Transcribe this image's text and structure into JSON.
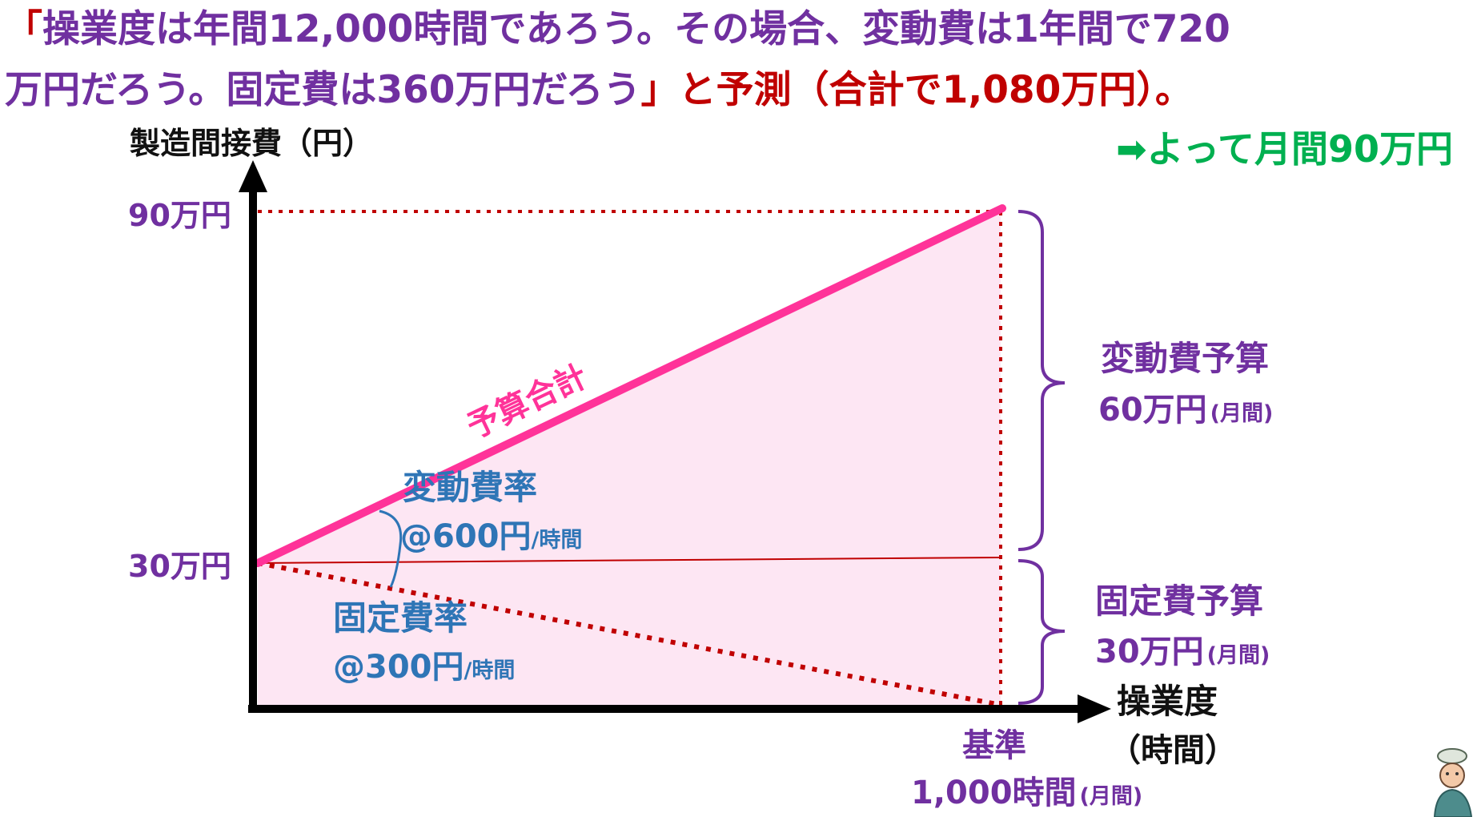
{
  "header": {
    "line1": {
      "open_bracket": "「",
      "text": "操業度は年間12,000時間であろう。その場合、変動費は1年間で720"
    },
    "line2": {
      "text": "万円だろう。固定費は360万円だろう",
      "close_bracket": "」",
      "suffix": "と予測（合計で1,080万円）。"
    }
  },
  "conclusion": "➡よって月間90万円",
  "y_axis": {
    "title": "製造間接費（円）",
    "tick_top": "90万円",
    "tick_mid": "30万円"
  },
  "x_axis": {
    "title_line1": "操業度",
    "title_line2": "（時間）",
    "baseline_label": "基準",
    "baseline_value": "1,000時間",
    "baseline_unit": "(月間)"
  },
  "lines": {
    "total_label": "予算合計"
  },
  "rates": {
    "variable_title": "変動費率",
    "variable_value": "@600円",
    "variable_unit": "/時間",
    "fixed_title": "固定費率",
    "fixed_value": "@300円",
    "fixed_unit": "/時間"
  },
  "budgets": {
    "variable_title": "変動費予算",
    "variable_value": "60万円",
    "variable_unit": "(月間)",
    "fixed_title": "固定費予算",
    "fixed_value": "30万円",
    "fixed_unit": "(月間)"
  },
  "colors": {
    "purple": "#7030a0",
    "red": "#c00000",
    "green": "#00b050",
    "pink": "#ff3399",
    "fill": "#fde6f3",
    "blue": "#2e75b6",
    "crimson": "#c00000"
  }
}
